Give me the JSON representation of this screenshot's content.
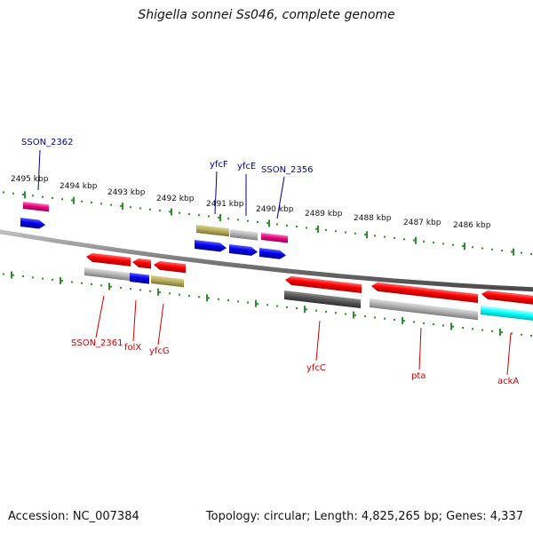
{
  "title": "Shigella sonnei Ss046, complete genome",
  "footer": {
    "accession": "Accession: NC_007384",
    "stats": "Topology: circular; Length: 4,825,265 bp; Genes: 4,337"
  },
  "colors": {
    "backbone": "#7a7a7a",
    "tick": "#2e8b2e",
    "top_label": "#00008b",
    "bottom_label": "#cc0000",
    "cds_red": "#ff0000",
    "blast_blue": "#0000ee",
    "olive": "#b5aa5a",
    "gray": "#b0b0b0",
    "darkgray": "#555555",
    "magenta": "#e6007e",
    "cyan": "#00ffff"
  },
  "ruler": [
    "2495 kbp",
    "2494 kbp",
    "2493 kbp",
    "2492 kbp",
    "2491 kbp",
    "2490 kbp",
    "2489 kbp",
    "2488 kbp",
    "2487 kbp",
    "2486 kbp"
  ],
  "top_genes": [
    "SSON_2362",
    "yfcF",
    "yfcE",
    "SSON_2356"
  ],
  "bottom_genes": [
    "SSON_2361",
    "folX",
    "yfcG",
    "yfcC",
    "pta",
    "ackA"
  ]
}
